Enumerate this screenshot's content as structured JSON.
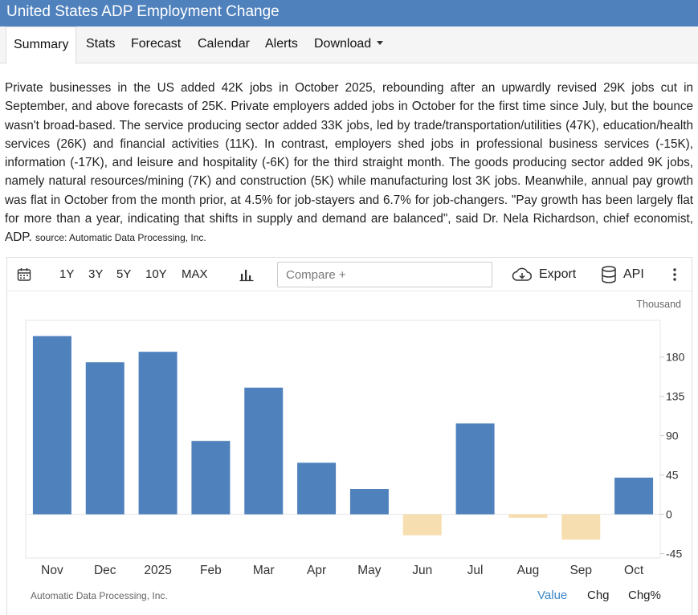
{
  "header": {
    "title": "United States ADP Employment Change"
  },
  "tabs": [
    {
      "label": "Summary",
      "active": true
    },
    {
      "label": "Stats"
    },
    {
      "label": "Forecast"
    },
    {
      "label": "Calendar"
    },
    {
      "label": "Alerts"
    },
    {
      "label": "Download",
      "has_dropdown": true
    }
  ],
  "summary": {
    "text": "Private businesses in the US added 42K jobs in October 2025, rebounding after an upwardly revised 29K jobs cut in September, and above forecasts of 25K. Private employers added jobs in October for the first time since July, but the bounce wasn't broad-based. The service producing sector added 33K jobs, led by trade/transportation/utilities (47K), education/health services (26K) and financial activities (11K). In contrast, employers shed jobs in professional business services (-15K), information (-17K), and leisure and hospitality (-6K) for the third straight month. The goods producing sector added 9K jobs, namely natural resources/mining (7K) and construction (5K) while manufacturing lost 3K jobs. Meanwhile, annual pay growth was flat in October from the month prior, at 4.5% for job-stayers and 6.7% for job-changers. \"Pay growth has been largely flat for more than a year, indicating that shifts in supply and demand are balanced\", said Dr. Nela Richardson, chief economist, ADP.",
    "source": "source: Automatic Data Processing, Inc."
  },
  "toolbar": {
    "calendar_icon": "calendar-icon",
    "ranges": [
      "1Y",
      "3Y",
      "5Y",
      "10Y",
      "MAX"
    ],
    "chart_type_icon": "bar-chart-icon",
    "compare_placeholder": "Compare +",
    "export_label": "Export",
    "export_icon": "cloud-download-icon",
    "api_label": "API",
    "api_icon": "database-icon",
    "more_icon": "more-vertical-icon"
  },
  "chart_data": {
    "type": "bar",
    "unit_label": "Thousand",
    "categories": [
      "Nov",
      "Dec",
      "2025",
      "Feb",
      "Mar",
      "Apr",
      "May",
      "Jun",
      "Jul",
      "Aug",
      "Sep",
      "Oct"
    ],
    "values": [
      204,
      174,
      186,
      84,
      145,
      59,
      29,
      -24,
      104,
      -4,
      -29,
      42
    ],
    "positive_color": "#4f81bd",
    "negative_color": "#f7deb0",
    "yticks": [
      180,
      135,
      90,
      45,
      0,
      -45
    ],
    "ylim": [
      -50,
      222
    ],
    "y_axis_position": "right",
    "grid": false
  },
  "footer": {
    "source": "Automatic Data Processing, Inc.",
    "modes": [
      {
        "label": "Value",
        "active": true
      },
      {
        "label": "Chg"
      },
      {
        "label": "Chg%"
      }
    ],
    "active_color": "#3a87c8"
  }
}
